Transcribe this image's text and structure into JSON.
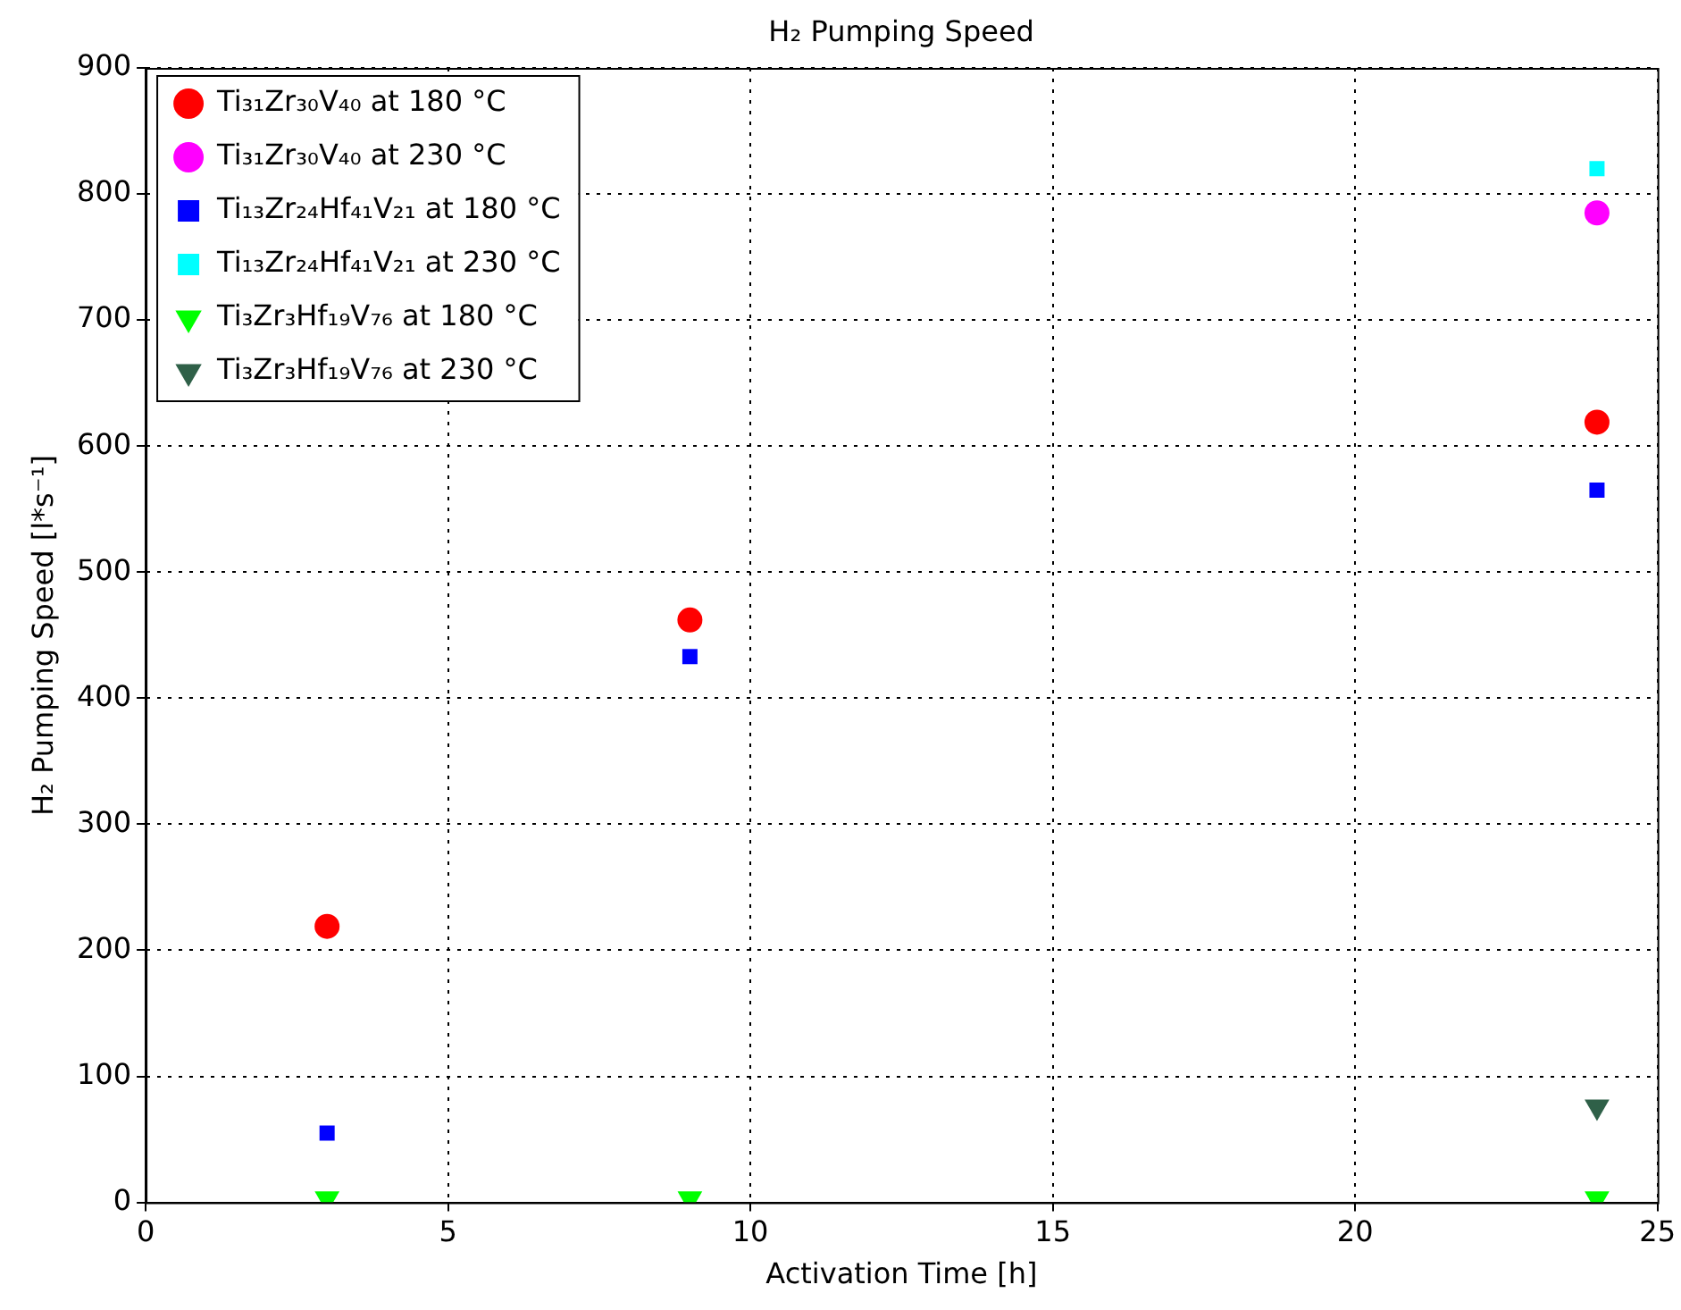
{
  "chart_data": {
    "type": "scatter",
    "title": "H₂ Pumping Speed",
    "xlabel": "Activation Time [h]",
    "ylabel": "H₂ Pumping Speed [l*s⁻¹]",
    "xlim": [
      0,
      25
    ],
    "xticks": [
      0,
      5,
      10,
      15,
      20,
      25
    ],
    "ylim": [
      0,
      900
    ],
    "yticks": [
      0,
      100,
      200,
      300,
      400,
      500,
      600,
      700,
      800,
      900
    ],
    "grid": true,
    "legend": "top left",
    "series": [
      {
        "name": "Ti₃₁Zr₃₀V₄₀ at 180 °C",
        "color": "#ff0000",
        "marker": "circle",
        "x": [
          3,
          9,
          24
        ],
        "values": [
          219,
          462,
          619
        ]
      },
      {
        "name": "Ti₃₁Zr₃₀V₄₀ at 230 °C",
        "color": "#ff00ff",
        "marker": "circle",
        "x": [
          24
        ],
        "values": [
          785
        ]
      },
      {
        "name": "Ti₁₃Zr₂₄Hf₄₁V₂₁ at 180 °C",
        "color": "#0000ff",
        "marker": "square",
        "x": [
          3,
          9,
          24
        ],
        "values": [
          55,
          433,
          565
        ]
      },
      {
        "name": "Ti₁₃Zr₂₄Hf₄₁V₂₁ at 230 °C",
        "color": "#00ffff",
        "marker": "square",
        "x": [
          24
        ],
        "values": [
          820
        ]
      },
      {
        "name": "Ti₃Zr₃Hf₁₉V₇₆ at 180 °C",
        "color": "#00ff00",
        "marker": "triangle",
        "x": [
          3,
          9,
          24
        ],
        "values": [
          3,
          3,
          3
        ]
      },
      {
        "name": "Ti₃Zr₃Hf₁₉V₇₆ at 230 °C",
        "color": "#2f6048",
        "marker": "triangle",
        "x": [
          24
        ],
        "values": [
          76
        ]
      }
    ]
  }
}
